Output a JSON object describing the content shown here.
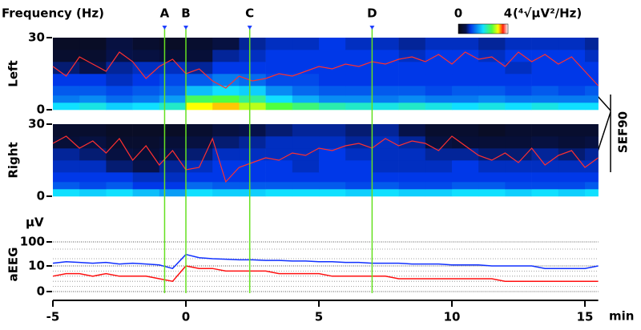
{
  "chart_data": [
    {
      "type": "heatmap",
      "title": "Frequency (Hz)",
      "ylabel": "Left",
      "ylim": [
        0,
        30
      ],
      "yticks": [
        0,
        30
      ],
      "x_bins": [
        -5,
        -4,
        -3,
        -2,
        -1,
        0,
        1,
        2,
        3,
        4,
        5,
        6,
        7,
        8,
        9,
        10,
        11,
        12,
        13,
        14,
        15,
        15.5
      ],
      "y_bins": [
        0,
        3,
        6,
        10,
        15,
        20,
        25,
        30
      ],
      "z": [
        [
          2.0,
          2.1,
          1.9,
          2.0,
          2.2,
          3.2,
          3.3,
          3.0,
          2.7,
          2.5,
          2.3,
          2.2,
          2.1,
          2.2,
          2.1,
          2.0,
          2.1,
          2.0,
          2.1,
          2.0,
          2.0
        ],
        [
          1.4,
          1.5,
          1.3,
          1.4,
          1.6,
          2.6,
          2.7,
          2.4,
          2.0,
          1.7,
          1.5,
          1.5,
          1.4,
          1.5,
          1.4,
          1.4,
          1.5,
          1.4,
          1.4,
          1.4,
          1.4
        ],
        [
          1.2,
          1.2,
          1.1,
          1.2,
          1.3,
          1.8,
          2.0,
          1.9,
          1.5,
          1.3,
          1.2,
          1.2,
          1.2,
          1.2,
          1.1,
          1.2,
          1.2,
          1.1,
          1.2,
          1.1,
          1.2
        ],
        [
          1.0,
          1.0,
          0.9,
          1.0,
          1.1,
          1.2,
          1.4,
          1.3,
          1.1,
          1.1,
          1.0,
          1.0,
          1.0,
          1.0,
          1.0,
          1.0,
          1.0,
          1.0,
          1.0,
          1.0,
          1.0
        ],
        [
          0.7,
          0.6,
          0.8,
          0.9,
          0.9,
          0.8,
          1.0,
          1.0,
          1.0,
          1.0,
          1.0,
          1.0,
          1.0,
          1.0,
          1.0,
          1.0,
          1.0,
          0.9,
          1.0,
          1.0,
          1.0
        ],
        [
          0.3,
          0.3,
          0.6,
          0.5,
          0.4,
          0.4,
          0.8,
          0.9,
          1.0,
          1.0,
          1.0,
          1.0,
          1.0,
          0.9,
          1.0,
          1.0,
          0.9,
          1.0,
          1.0,
          1.0,
          0.9
        ],
        [
          0.2,
          0.2,
          0.5,
          0.3,
          0.2,
          0.3,
          0.5,
          0.8,
          0.9,
          0.9,
          1.0,
          0.9,
          0.9,
          0.8,
          0.9,
          0.9,
          0.8,
          0.9,
          0.9,
          0.9,
          0.8
        ]
      ],
      "colorscale": [
        [
          0,
          "#0a0a14"
        ],
        [
          0.6,
          "#06124a"
        ],
        [
          1,
          "#0038e8"
        ],
        [
          2,
          "#10e0ff"
        ],
        [
          2.7,
          "#50ff40"
        ],
        [
          3.2,
          "#ffff00"
        ],
        [
          3.6,
          "#ff2010"
        ],
        [
          4,
          "#ffffff"
        ]
      ],
      "colorbar": {
        "ticks": [
          0,
          4
        ],
        "label": "(⁴√μV²/Hz)"
      },
      "annotations": [
        {
          "label": "A",
          "x": -0.8
        },
        {
          "label": "B",
          "x": 0
        },
        {
          "label": "C",
          "x": 2.4
        },
        {
          "label": "D",
          "x": 7
        }
      ],
      "marker_color": "#66e020",
      "series": [
        {
          "name": "SEF90",
          "color": "#ff3030",
          "x": [
            -5,
            -4.5,
            -4,
            -3.5,
            -3,
            -2.5,
            -2,
            -1.5,
            -1,
            -0.5,
            0,
            0.5,
            1,
            1.5,
            2,
            2.5,
            3,
            3.5,
            4,
            4.5,
            5,
            5.5,
            6,
            6.5,
            7,
            7.5,
            8,
            8.5,
            9,
            9.5,
            10,
            10.5,
            11,
            11.5,
            12,
            12.5,
            13,
            13.5,
            14,
            14.5,
            15,
            15.5
          ],
          "values": [
            18,
            14,
            22,
            19,
            16,
            24,
            20,
            13,
            18,
            21,
            15,
            17,
            12,
            9,
            14,
            12,
            13,
            15,
            14,
            16,
            18,
            17,
            19,
            18,
            20,
            19,
            21,
            22,
            20,
            23,
            19,
            24,
            21,
            22,
            18,
            24,
            20,
            23,
            19,
            22,
            16,
            10
          ]
        }
      ]
    },
    {
      "type": "heatmap",
      "ylabel": "Right",
      "ylim": [
        0,
        30
      ],
      "yticks": [
        0,
        30
      ],
      "x_bins": [
        -5,
        -4,
        -3,
        -2,
        -1,
        0,
        1,
        2,
        3,
        4,
        5,
        6,
        7,
        8,
        9,
        10,
        11,
        12,
        13,
        14,
        15,
        15.5
      ],
      "y_bins": [
        0,
        3,
        6,
        10,
        15,
        20,
        25,
        30
      ],
      "z": [
        [
          2.0,
          1.9,
          2.0,
          1.8,
          1.6,
          2.0,
          1.9,
          1.9,
          2.0,
          2.0,
          2.0,
          1.9,
          2.0,
          1.9,
          1.9,
          2.0,
          2.0,
          1.9,
          2.0,
          1.9,
          2.0
        ],
        [
          1.2,
          1.1,
          1.2,
          1.0,
          1.0,
          1.3,
          1.2,
          1.2,
          1.2,
          1.2,
          1.2,
          1.1,
          1.2,
          1.1,
          1.1,
          1.2,
          1.2,
          1.1,
          1.1,
          1.1,
          1.2
        ],
        [
          1.0,
          1.0,
          1.0,
          0.9,
          0.9,
          1.0,
          1.0,
          1.0,
          1.0,
          1.0,
          1.0,
          1.0,
          1.0,
          1.0,
          1.0,
          1.0,
          1.0,
          1.0,
          1.0,
          1.0,
          1.0
        ],
        [
          0.9,
          0.9,
          0.7,
          0.6,
          0.8,
          0.9,
          1.0,
          1.0,
          1.0,
          0.9,
          1.0,
          1.0,
          0.9,
          0.9,
          0.9,
          1.0,
          0.9,
          0.9,
          0.9,
          0.9,
          0.9
        ],
        [
          0.8,
          0.7,
          0.5,
          0.4,
          0.6,
          0.7,
          0.9,
          0.9,
          0.9,
          0.9,
          1.0,
          0.9,
          0.9,
          0.9,
          0.8,
          0.8,
          0.7,
          0.7,
          0.8,
          0.7,
          0.8
        ],
        [
          0.4,
          0.5,
          0.3,
          0.3,
          0.4,
          0.5,
          0.7,
          0.8,
          0.9,
          0.9,
          0.9,
          0.8,
          0.9,
          0.8,
          0.5,
          0.4,
          0.4,
          0.4,
          0.5,
          0.4,
          0.5
        ],
        [
          0.3,
          0.3,
          0.2,
          0.2,
          0.2,
          0.3,
          0.5,
          0.6,
          0.7,
          0.8,
          0.8,
          0.7,
          0.8,
          0.6,
          0.3,
          0.3,
          0.2,
          0.3,
          0.3,
          0.3,
          0.3
        ]
      ],
      "series": [
        {
          "color": "#ff3030",
          "x": [
            -5,
            -4.5,
            -4,
            -3.5,
            -3,
            -2.5,
            -2,
            -1.5,
            -1,
            -0.5,
            0,
            0.5,
            1,
            1.5,
            2,
            2.5,
            3,
            3.5,
            4,
            4.5,
            5,
            5.5,
            6,
            6.5,
            7,
            7.5,
            8,
            8.5,
            9,
            9.5,
            10,
            10.5,
            11,
            11.5,
            12,
            12.5,
            13,
            13.5,
            14,
            14.5,
            15,
            15.5
          ],
          "values": [
            22,
            25,
            20,
            23,
            18,
            24,
            15,
            21,
            13,
            19,
            11,
            12,
            24,
            6,
            12,
            14,
            16,
            15,
            18,
            17,
            20,
            19,
            21,
            22,
            20,
            24,
            21,
            23,
            22,
            19,
            25,
            21,
            17,
            15,
            18,
            14,
            20,
            13,
            17,
            19,
            12,
            16
          ]
        }
      ]
    },
    {
      "type": "line",
      "ylabel": "aEEG",
      "yunit": "μV",
      "yscale": "lin-log",
      "ybreak": 10,
      "ylim": [
        0,
        100
      ],
      "yticks": [
        0,
        10,
        100
      ],
      "minor_yticks": [
        2,
        4,
        6,
        8,
        20,
        50
      ],
      "xlim": [
        -5,
        15.5
      ],
      "xticks": [
        -5,
        0,
        5,
        10,
        15
      ],
      "xunit": "min",
      "x": [
        -5,
        -4.5,
        -4,
        -3.5,
        -3,
        -2.5,
        -2,
        -1.5,
        -1,
        -0.5,
        0,
        0.5,
        1,
        1.5,
        2,
        2.5,
        3,
        3.5,
        4,
        4.5,
        5,
        5.5,
        6,
        6.5,
        7,
        7.5,
        8,
        8.5,
        9,
        9.5,
        10,
        10.5,
        11,
        11.5,
        12,
        12.5,
        13,
        13.5,
        14,
        14.5,
        15,
        15.5
      ],
      "series": [
        {
          "color": "#1030ff",
          "values": [
            13,
            15,
            14,
            13,
            14,
            12,
            13,
            12,
            11,
            9,
            30,
            22,
            20,
            19,
            18,
            18,
            17,
            17,
            16,
            16,
            15,
            15,
            14,
            14,
            13,
            13,
            13,
            12,
            12,
            12,
            11,
            11,
            11,
            10,
            10,
            10,
            10,
            9,
            9,
            9,
            9,
            10
          ]
        },
        {
          "color": "#ff1010",
          "values": [
            6,
            7,
            7,
            6,
            7,
            6,
            6,
            6,
            5,
            4,
            10,
            9,
            9,
            8,
            8,
            8,
            8,
            7,
            7,
            7,
            7,
            6,
            6,
            6,
            6,
            6,
            5,
            5,
            5,
            5,
            5,
            5,
            5,
            5,
            4,
            4,
            4,
            4,
            4,
            4,
            4,
            4
          ]
        }
      ]
    }
  ]
}
